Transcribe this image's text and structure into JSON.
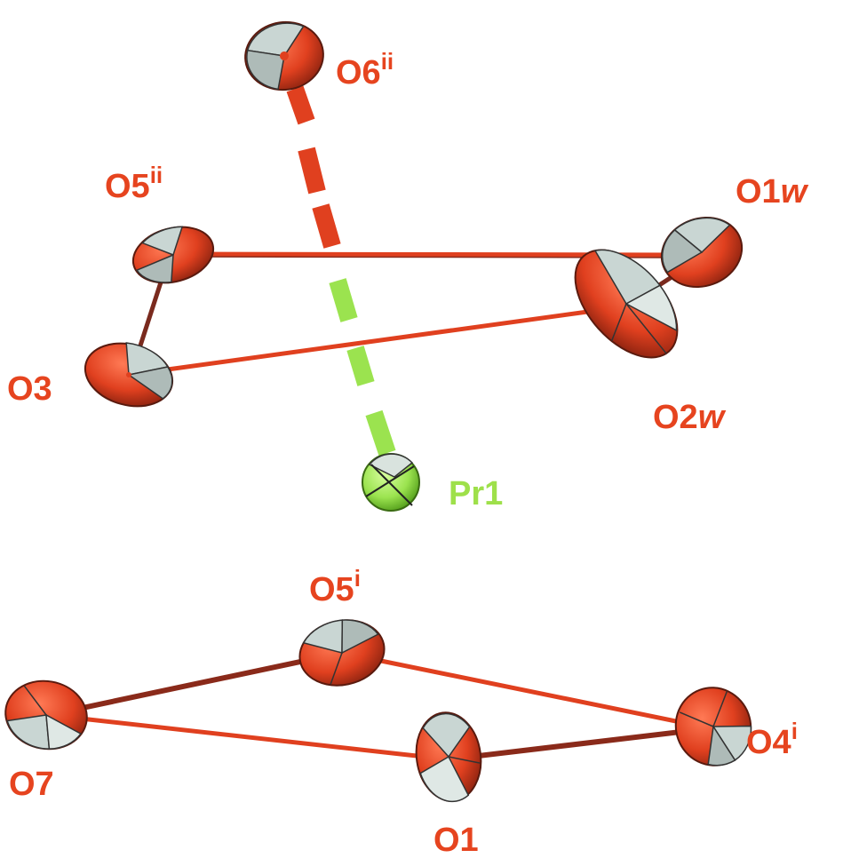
{
  "colors": {
    "oxygen": "#e0401f",
    "oxygen_dark": "#9e2a14",
    "praseodymium": "#9be34f",
    "praseodymium_dark": "#5fae1e",
    "octant": "#c9d6d3",
    "bond": "#e0401f",
    "bond_dark": "#8a2a1a",
    "label_oxygen": "#e6441f",
    "label_praseodymium": "#9ee04a"
  },
  "labels": {
    "o6": {
      "base": "O6",
      "sup": "ii"
    },
    "o5ii": {
      "base": "O5",
      "sup": "ii"
    },
    "o1w": {
      "base": "O1",
      "ital": "w"
    },
    "o3": {
      "base": "O3"
    },
    "o2w": {
      "base": "O2",
      "ital": "w"
    },
    "pr1": {
      "base": "Pr1"
    },
    "o5i": {
      "base": "O5",
      "sup": "i"
    },
    "o7": {
      "base": "O7"
    },
    "o1": {
      "base": "O1"
    },
    "o4i": {
      "base": "O4",
      "sup": "i"
    }
  }
}
